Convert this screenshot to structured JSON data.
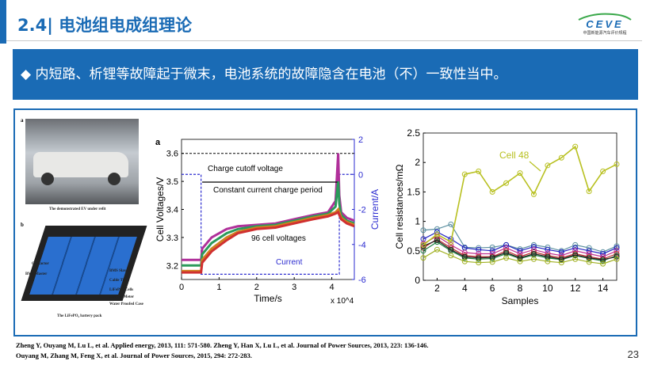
{
  "header": {
    "title": "2.4| 电池组电成组理论",
    "logo_text": "CEVE",
    "logo_subtitle": "中国新能源汽车评价规程"
  },
  "banner": {
    "bullet": "◆",
    "text": "内短路、析锂等故障起于微末，电池系统的故障隐含在电池（不）一致性当中。"
  },
  "figure_left": {
    "panel_a_letter": "a",
    "panel_a_caption": "The demonstrated EV under refit",
    "panel_b_letter": "b",
    "panel_b_caption": "The LiFePO₄ battery pack",
    "pack_labels": [
      "Contactor",
      "BMS Master",
      "BMS Slaves",
      "Cable Tie",
      "LiFePO₄ Cells",
      "Electric Meter",
      "Water Proofed Case"
    ]
  },
  "references": [
    "Zheng Y, Ouyang M, Lu L, et al. Applied energy, 2013, 111: 571-580. Zheng Y, Han X, Lu L, et al. Journal of Power Sources, 2013, 223: 136-146.",
    "Ouyang M, Zhang M, Feng X, et al. Journal of Power Sources, 2015, 294: 272-283."
  ],
  "page_number": "23",
  "chart_data": [
    {
      "type": "line",
      "panel_label": "a",
      "xlabel": "Time/s",
      "x_multiplier": "x 10^4",
      "ylabel": "Cell Voltages/V",
      "y2label": "Current/A",
      "xlim": [
        0,
        4.6
      ],
      "ylim": [
        3.15,
        3.65
      ],
      "y2lim": [
        -6,
        2
      ],
      "xticks": [
        0,
        1,
        2,
        3,
        4
      ],
      "yticks": [
        3.2,
        3.3,
        3.4,
        3.5,
        3.6
      ],
      "y2ticks": [
        2,
        0,
        -2,
        -4,
        -6
      ],
      "annotations": [
        "Charge cutoff voltage",
        "Constant current charge period",
        "96 cell voltages",
        "Current"
      ],
      "cutoff_voltage": 3.6,
      "series": [
        {
          "name": "Current",
          "axis": "right",
          "color": "#2b2bd0",
          "x": [
            0,
            0.52,
            0.52,
            4.2,
            4.2,
            4.6
          ],
          "y": [
            0,
            0,
            -5.7,
            -5.7,
            0,
            0
          ]
        },
        {
          "axis": "left",
          "color": "#b0309a",
          "x": [
            0,
            0.52,
            0.55,
            0.8,
            1.2,
            1.5,
            2,
            2.5,
            3,
            3.5,
            3.9,
            4.1,
            4.17,
            4.2,
            4.25,
            4.4,
            4.6
          ],
          "y": [
            3.22,
            3.22,
            3.26,
            3.3,
            3.33,
            3.34,
            3.345,
            3.35,
            3.365,
            3.38,
            3.39,
            3.43,
            3.6,
            3.45,
            3.39,
            3.37,
            3.36
          ]
        },
        {
          "axis": "left",
          "color": "#2a9a5a",
          "x": [
            0,
            0.52,
            0.55,
            0.8,
            1.2,
            1.5,
            2,
            2.5,
            3,
            3.5,
            3.9,
            4.1,
            4.17,
            4.2,
            4.25,
            4.4,
            4.6
          ],
          "y": [
            3.2,
            3.2,
            3.24,
            3.28,
            3.315,
            3.33,
            3.34,
            3.345,
            3.36,
            3.375,
            3.385,
            3.41,
            3.5,
            3.42,
            3.38,
            3.36,
            3.35
          ]
        },
        {
          "axis": "left",
          "color": "#d08020",
          "x": [
            0,
            0.52,
            0.55,
            0.8,
            1.2,
            1.5,
            2,
            2.5,
            3,
            3.5,
            3.9,
            4.1,
            4.17,
            4.2,
            4.25,
            4.4,
            4.6
          ],
          "y": [
            3.18,
            3.18,
            3.22,
            3.26,
            3.3,
            3.32,
            3.335,
            3.34,
            3.355,
            3.37,
            3.38,
            3.39,
            3.4,
            3.39,
            3.37,
            3.355,
            3.345
          ]
        },
        {
          "axis": "left",
          "color": "#d03030",
          "x": [
            0,
            0.52,
            0.55,
            0.8,
            1.2,
            1.5,
            2,
            2.5,
            3,
            3.5,
            3.9,
            4.1,
            4.17,
            4.2,
            4.25,
            4.4,
            4.6
          ],
          "y": [
            3.175,
            3.175,
            3.21,
            3.25,
            3.29,
            3.315,
            3.33,
            3.335,
            3.35,
            3.365,
            3.375,
            3.385,
            3.39,
            3.38,
            3.365,
            3.35,
            3.34
          ]
        }
      ]
    },
    {
      "type": "line",
      "xlabel": "Samples",
      "ylabel": "Cell resistances/mΩ",
      "xlim": [
        1,
        15
      ],
      "ylim": [
        0,
        2.5
      ],
      "xticks": [
        2,
        4,
        6,
        8,
        10,
        12,
        14
      ],
      "yticks": [
        0,
        0.5,
        1,
        1.5,
        2,
        2.5
      ],
      "annotations": [
        "Cell 48"
      ],
      "x": [
        1,
        2,
        3,
        4,
        5,
        6,
        7,
        8,
        9,
        10,
        11,
        12,
        13,
        14,
        15
      ],
      "series": [
        {
          "name": "Cell 48",
          "color": "#b8c020",
          "values": [
            0.6,
            0.78,
            0.65,
            1.8,
            1.85,
            1.5,
            1.65,
            1.82,
            1.46,
            1.95,
            2.08,
            2.27,
            1.51,
            1.85,
            1.97
          ]
        },
        {
          "color": "#5a8fa0",
          "values": [
            0.85,
            0.87,
            0.95,
            0.56,
            0.55,
            0.56,
            0.6,
            0.53,
            0.6,
            0.56,
            0.5,
            0.6,
            0.55,
            0.48,
            0.58
          ]
        },
        {
          "color": "#2020c0",
          "values": [
            0.7,
            0.82,
            0.7,
            0.55,
            0.52,
            0.5,
            0.6,
            0.5,
            0.57,
            0.52,
            0.48,
            0.55,
            0.5,
            0.45,
            0.55
          ]
        },
        {
          "color": "#c03090",
          "values": [
            0.62,
            0.75,
            0.6,
            0.47,
            0.45,
            0.45,
            0.55,
            0.45,
            0.52,
            0.46,
            0.42,
            0.5,
            0.45,
            0.4,
            0.5
          ]
        },
        {
          "color": "#c03030",
          "values": [
            0.55,
            0.7,
            0.55,
            0.42,
            0.4,
            0.4,
            0.5,
            0.4,
            0.48,
            0.42,
            0.38,
            0.45,
            0.4,
            0.36,
            0.45
          ]
        },
        {
          "color": "#208040",
          "values": [
            0.5,
            0.65,
            0.5,
            0.38,
            0.36,
            0.37,
            0.45,
            0.37,
            0.43,
            0.38,
            0.35,
            0.42,
            0.37,
            0.33,
            0.42
          ]
        },
        {
          "color": "#222222",
          "values": [
            0.58,
            0.68,
            0.52,
            0.4,
            0.38,
            0.39,
            0.47,
            0.38,
            0.45,
            0.4,
            0.36,
            0.43,
            0.38,
            0.35,
            0.4
          ]
        },
        {
          "color": "#a0b020",
          "values": [
            0.38,
            0.52,
            0.42,
            0.32,
            0.3,
            0.31,
            0.38,
            0.32,
            0.36,
            0.32,
            0.3,
            0.36,
            0.31,
            0.28,
            0.36
          ]
        }
      ]
    }
  ]
}
